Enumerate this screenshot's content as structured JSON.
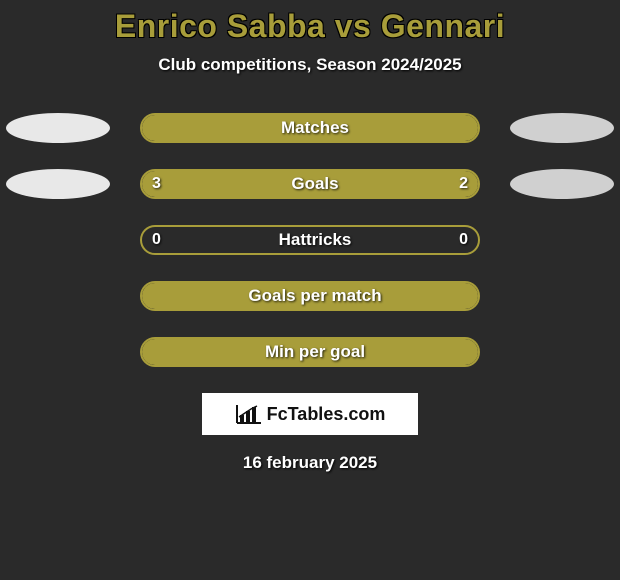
{
  "title": "Enrico Sabba vs Gennari",
  "subtitle": "Club competitions, Season 2024/2025",
  "colors": {
    "background": "#2a2a2a",
    "accent": "#a89d3a",
    "left_player": "#e8e8e8",
    "right_player": "#d0d0d0",
    "text": "#ffffff"
  },
  "stats": [
    {
      "label": "Matches",
      "left_value": "",
      "right_value": "",
      "left_pct": 100,
      "right_pct": 0,
      "full": true,
      "show_side_ellipses": true
    },
    {
      "label": "Goals",
      "left_value": "3",
      "right_value": "2",
      "left_pct": 60,
      "right_pct": 40,
      "full": false,
      "show_side_ellipses": true
    },
    {
      "label": "Hattricks",
      "left_value": "0",
      "right_value": "0",
      "left_pct": 0,
      "right_pct": 0,
      "full": false,
      "show_side_ellipses": false
    },
    {
      "label": "Goals per match",
      "left_value": "",
      "right_value": "",
      "left_pct": 100,
      "right_pct": 0,
      "full": true,
      "show_side_ellipses": false
    },
    {
      "label": "Min per goal",
      "left_value": "",
      "right_value": "",
      "left_pct": 100,
      "right_pct": 0,
      "full": true,
      "show_side_ellipses": false
    }
  ],
  "logo_text": "FcTables.com",
  "date": "16 february 2025"
}
